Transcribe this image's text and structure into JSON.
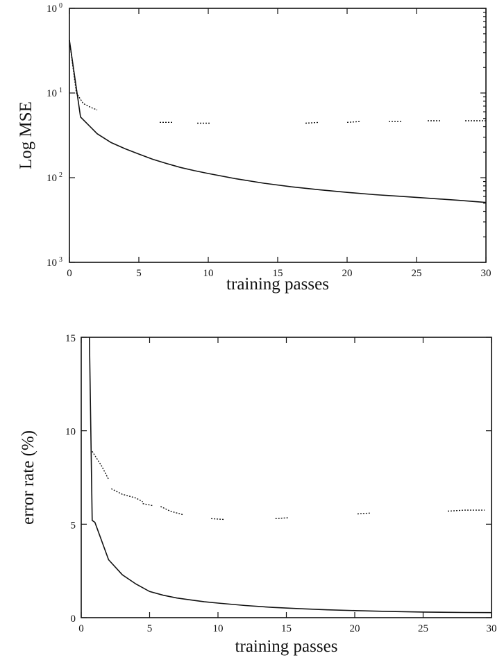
{
  "chart_data": [
    {
      "type": "line",
      "xlabel": "training passes",
      "ylabel": "Log MSE",
      "xlim": [
        0,
        30
      ],
      "ylim": [
        0.001,
        1
      ],
      "yscale": "log",
      "x_ticks": [
        0,
        5,
        10,
        15,
        20,
        25,
        30
      ],
      "y_ticks": [
        {
          "value": 1,
          "base": "10",
          "exp": "0"
        },
        {
          "value": 0.1,
          "base": "10",
          "exp": "1"
        },
        {
          "value": 0.01,
          "base": "10",
          "exp": "2"
        },
        {
          "value": 0.001,
          "base": "10",
          "exp": "3"
        }
      ],
      "series": [
        {
          "style": "solid",
          "points": [
            [
              0,
              0.42
            ],
            [
              0.8,
              0.052
            ],
            [
              2,
              0.033
            ],
            [
              3,
              0.026
            ],
            [
              4,
              0.022
            ],
            [
              5,
              0.019
            ],
            [
              6,
              0.0165
            ],
            [
              7,
              0.0147
            ],
            [
              8,
              0.0132
            ],
            [
              9,
              0.0121
            ],
            [
              10,
              0.0112
            ],
            [
              12,
              0.0097
            ],
            [
              14,
              0.0086
            ],
            [
              16,
              0.0078
            ],
            [
              18,
              0.0072
            ],
            [
              20,
              0.0067
            ],
            [
              22,
              0.0063
            ],
            [
              24,
              0.006
            ],
            [
              26,
              0.0057
            ],
            [
              28,
              0.0054
            ],
            [
              30,
              0.0051
            ]
          ]
        },
        {
          "style": "dotted",
          "segments": [
            [
              [
                0,
                0.42
              ],
              [
                0.5,
                0.1
              ],
              [
                1,
                0.075
              ],
              [
                1.5,
                0.068
              ],
              [
                2,
                0.063
              ]
            ],
            [
              [
                6.5,
                0.045
              ],
              [
                7.5,
                0.045
              ]
            ],
            [
              [
                9.2,
                0.044
              ],
              [
                10.2,
                0.044
              ]
            ],
            [
              [
                17,
                0.044
              ],
              [
                18,
                0.045
              ]
            ],
            [
              [
                20,
                0.045
              ],
              [
                21,
                0.046
              ]
            ],
            [
              [
                23,
                0.046
              ],
              [
                24,
                0.046
              ]
            ],
            [
              [
                25.8,
                0.047
              ],
              [
                26.8,
                0.047
              ]
            ],
            [
              [
                28.5,
                0.047
              ],
              [
                30,
                0.047
              ]
            ]
          ]
        }
      ]
    },
    {
      "type": "line",
      "xlabel": "training passes",
      "ylabel": "error rate (%)",
      "xlim": [
        0,
        30
      ],
      "ylim": [
        0,
        15
      ],
      "x_ticks": [
        0,
        5,
        10,
        15,
        20,
        25,
        30
      ],
      "y_ticks": [
        0,
        5,
        10,
        15
      ],
      "series": [
        {
          "style": "solid",
          "points": [
            [
              0.6,
              15
            ],
            [
              0.8,
              5.2
            ],
            [
              1,
              5.1
            ],
            [
              2,
              3.1
            ],
            [
              3,
              2.3
            ],
            [
              4,
              1.8
            ],
            [
              5,
              1.4
            ],
            [
              6,
              1.2
            ],
            [
              7,
              1.05
            ],
            [
              8,
              0.95
            ],
            [
              9,
              0.85
            ],
            [
              10,
              0.78
            ],
            [
              12,
              0.65
            ],
            [
              14,
              0.55
            ],
            [
              16,
              0.48
            ],
            [
              18,
              0.42
            ],
            [
              20,
              0.38
            ],
            [
              22,
              0.34
            ],
            [
              25,
              0.3
            ],
            [
              28,
              0.28
            ],
            [
              30,
              0.27
            ]
          ]
        },
        {
          "style": "dotted",
          "segments": [
            [
              [
                0.8,
                8.9
              ],
              [
                1.5,
                8.1
              ],
              [
                2,
                7.4
              ]
            ],
            [
              [
                2.2,
                6.9
              ],
              [
                3,
                6.6
              ],
              [
                4,
                6.4
              ],
              [
                4.5,
                6.2
              ]
            ],
            [
              [
                4.5,
                6.1
              ],
              [
                5.2,
                6.0
              ]
            ],
            [
              [
                5.8,
                5.95
              ],
              [
                6.5,
                5.7
              ],
              [
                7.5,
                5.5
              ]
            ],
            [
              [
                9.5,
                5.3
              ],
              [
                10.5,
                5.25
              ]
            ],
            [
              [
                14.2,
                5.3
              ],
              [
                15.2,
                5.35
              ]
            ],
            [
              [
                20.2,
                5.55
              ],
              [
                21.2,
                5.6
              ]
            ],
            [
              [
                26.8,
                5.7
              ],
              [
                28,
                5.75
              ],
              [
                29.5,
                5.75
              ]
            ]
          ]
        }
      ]
    }
  ]
}
